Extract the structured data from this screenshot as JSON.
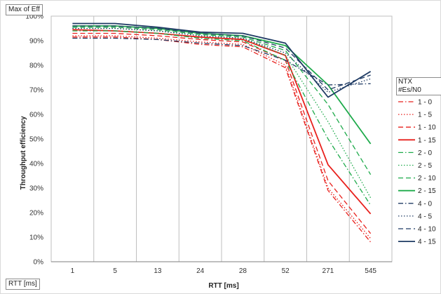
{
  "pivot": {
    "filter_field": "Max of Eff",
    "axis_field": "RTT [ms]",
    "legend_header_1": "NTX",
    "legend_header_2": "#Es/N0"
  },
  "colors": {
    "red": "#e8201c",
    "green": "#1daa4a",
    "navy": "#1f3b64",
    "grid": "#bfbfbf",
    "axis": "#7f7f7f"
  },
  "chart_data": {
    "type": "line",
    "xlabel": "RTT [ms]",
    "ylabel": "Throughput efficiency",
    "categories": [
      "1",
      "5",
      "13",
      "24",
      "28",
      "52",
      "271",
      "545"
    ],
    "ylim": [
      0,
      100
    ],
    "y_ticks": [
      "0%",
      "10%",
      "20%",
      "30%",
      "40%",
      "50%",
      "60%",
      "70%",
      "80%",
      "90%",
      "100%"
    ],
    "grid": {
      "vertical": true,
      "horizontal": false
    },
    "legend_position": "right",
    "series": [
      {
        "name": "1 - 0",
        "color": "red",
        "dash": "dashdot",
        "width": 1.3,
        "values": [
          91.5,
          91.5,
          90.5,
          88.5,
          87.5,
          79,
          29,
          8
        ]
      },
      {
        "name": "1 - 5",
        "color": "red",
        "dash": "dot",
        "width": 1.3,
        "values": [
          92,
          92,
          91,
          89.5,
          88.5,
          80,
          30,
          9.5
        ]
      },
      {
        "name": "1 - 10",
        "color": "red",
        "dash": "dash",
        "width": 1.3,
        "values": [
          93,
          93,
          92,
          90.5,
          89.5,
          82,
          33,
          11.5
        ]
      },
      {
        "name": "1 - 15",
        "color": "red",
        "dash": "solid",
        "width": 1.8,
        "values": [
          94.5,
          94,
          93,
          91.5,
          90.5,
          84,
          39.5,
          19.5
        ]
      },
      {
        "name": "2 - 0",
        "color": "green",
        "dash": "dashdot",
        "width": 1.3,
        "values": [
          94,
          94,
          93,
          91,
          90,
          82,
          50,
          23
        ]
      },
      {
        "name": "2 - 5",
        "color": "green",
        "dash": "dot",
        "width": 1.3,
        "values": [
          95,
          95,
          94,
          92,
          91,
          84,
          57,
          26
        ]
      },
      {
        "name": "2 - 10",
        "color": "green",
        "dash": "dash",
        "width": 1.3,
        "values": [
          95.5,
          95.5,
          94.5,
          92.5,
          91.5,
          86,
          64,
          35.5
        ]
      },
      {
        "name": "2 - 15",
        "color": "green",
        "dash": "solid",
        "width": 1.8,
        "values": [
          96,
          96,
          95,
          93,
          92,
          88,
          72,
          48
        ]
      },
      {
        "name": "4 - 0",
        "color": "navy",
        "dash": "dashdot",
        "width": 1.3,
        "values": [
          91,
          91,
          90.5,
          89,
          88,
          82,
          72,
          72.5
        ]
      },
      {
        "name": "4 - 5",
        "color": "navy",
        "dash": "dot",
        "width": 1.3,
        "values": [
          95,
          95,
          94,
          92,
          91,
          85,
          69,
          74.5
        ]
      },
      {
        "name": "4 - 10",
        "color": "navy",
        "dash": "dash",
        "width": 1.3,
        "values": [
          96,
          96,
          95,
          93,
          92,
          87,
          70,
          76
        ]
      },
      {
        "name": "4 - 15",
        "color": "navy",
        "dash": "solid",
        "width": 1.8,
        "values": [
          97,
          97,
          95.5,
          93.5,
          93,
          89,
          67,
          77.5
        ]
      }
    ]
  }
}
